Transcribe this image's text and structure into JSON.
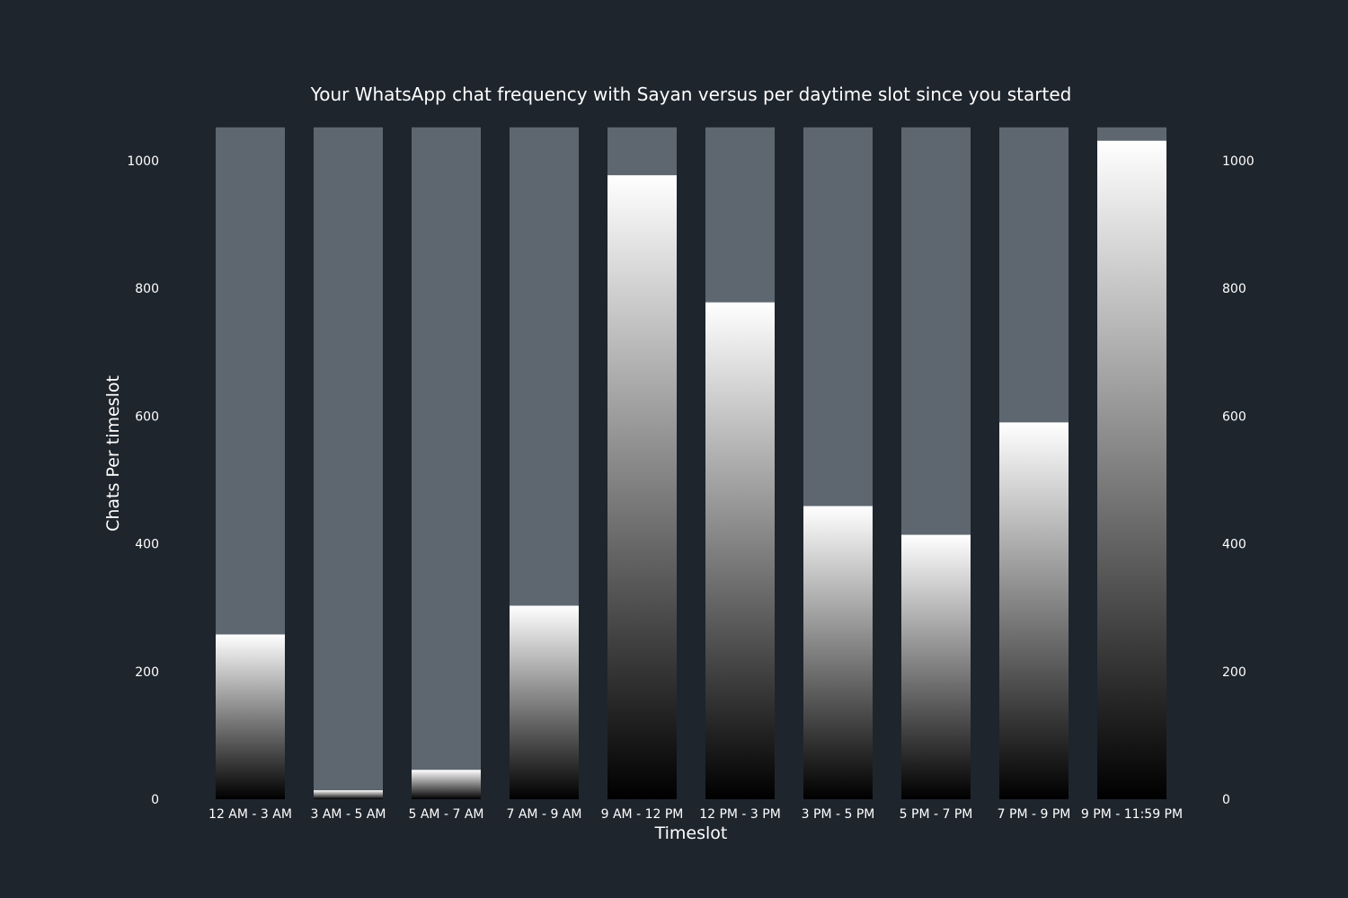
{
  "chart_data": {
    "type": "bar",
    "title": "Your WhatsApp chat frequency with Sayan versus per daytime slot since you started",
    "xlabel": "Timeslot",
    "ylabel": "Chats Per timeslot",
    "categories": [
      "12 AM - 3 AM",
      "3 AM - 5 AM",
      "5 AM - 7 AM",
      "7 AM - 9 AM",
      "9 AM - 12 PM",
      "12 PM - 3 PM",
      "3 PM - 5 PM",
      "5 PM - 7 PM",
      "7 PM - 9 PM",
      "9 PM - 11:59 PM"
    ],
    "values": [
      258,
      14,
      46,
      303,
      977,
      778,
      459,
      414,
      590,
      1031
    ],
    "background_value": 1052,
    "ylim": [
      0,
      1052
    ],
    "yticks": [
      0,
      200,
      400,
      600,
      800,
      1000
    ],
    "ytick_labels": [
      "0",
      "200",
      "400",
      "600",
      "800",
      "1000"
    ],
    "right_axis": true,
    "grid": false,
    "legend": "none",
    "colors": {
      "background": "#1f252d",
      "track": "#5e6770",
      "gradient_top": "#ffffff",
      "gradient_bottom": "#000000",
      "text": "#ffffff"
    }
  }
}
